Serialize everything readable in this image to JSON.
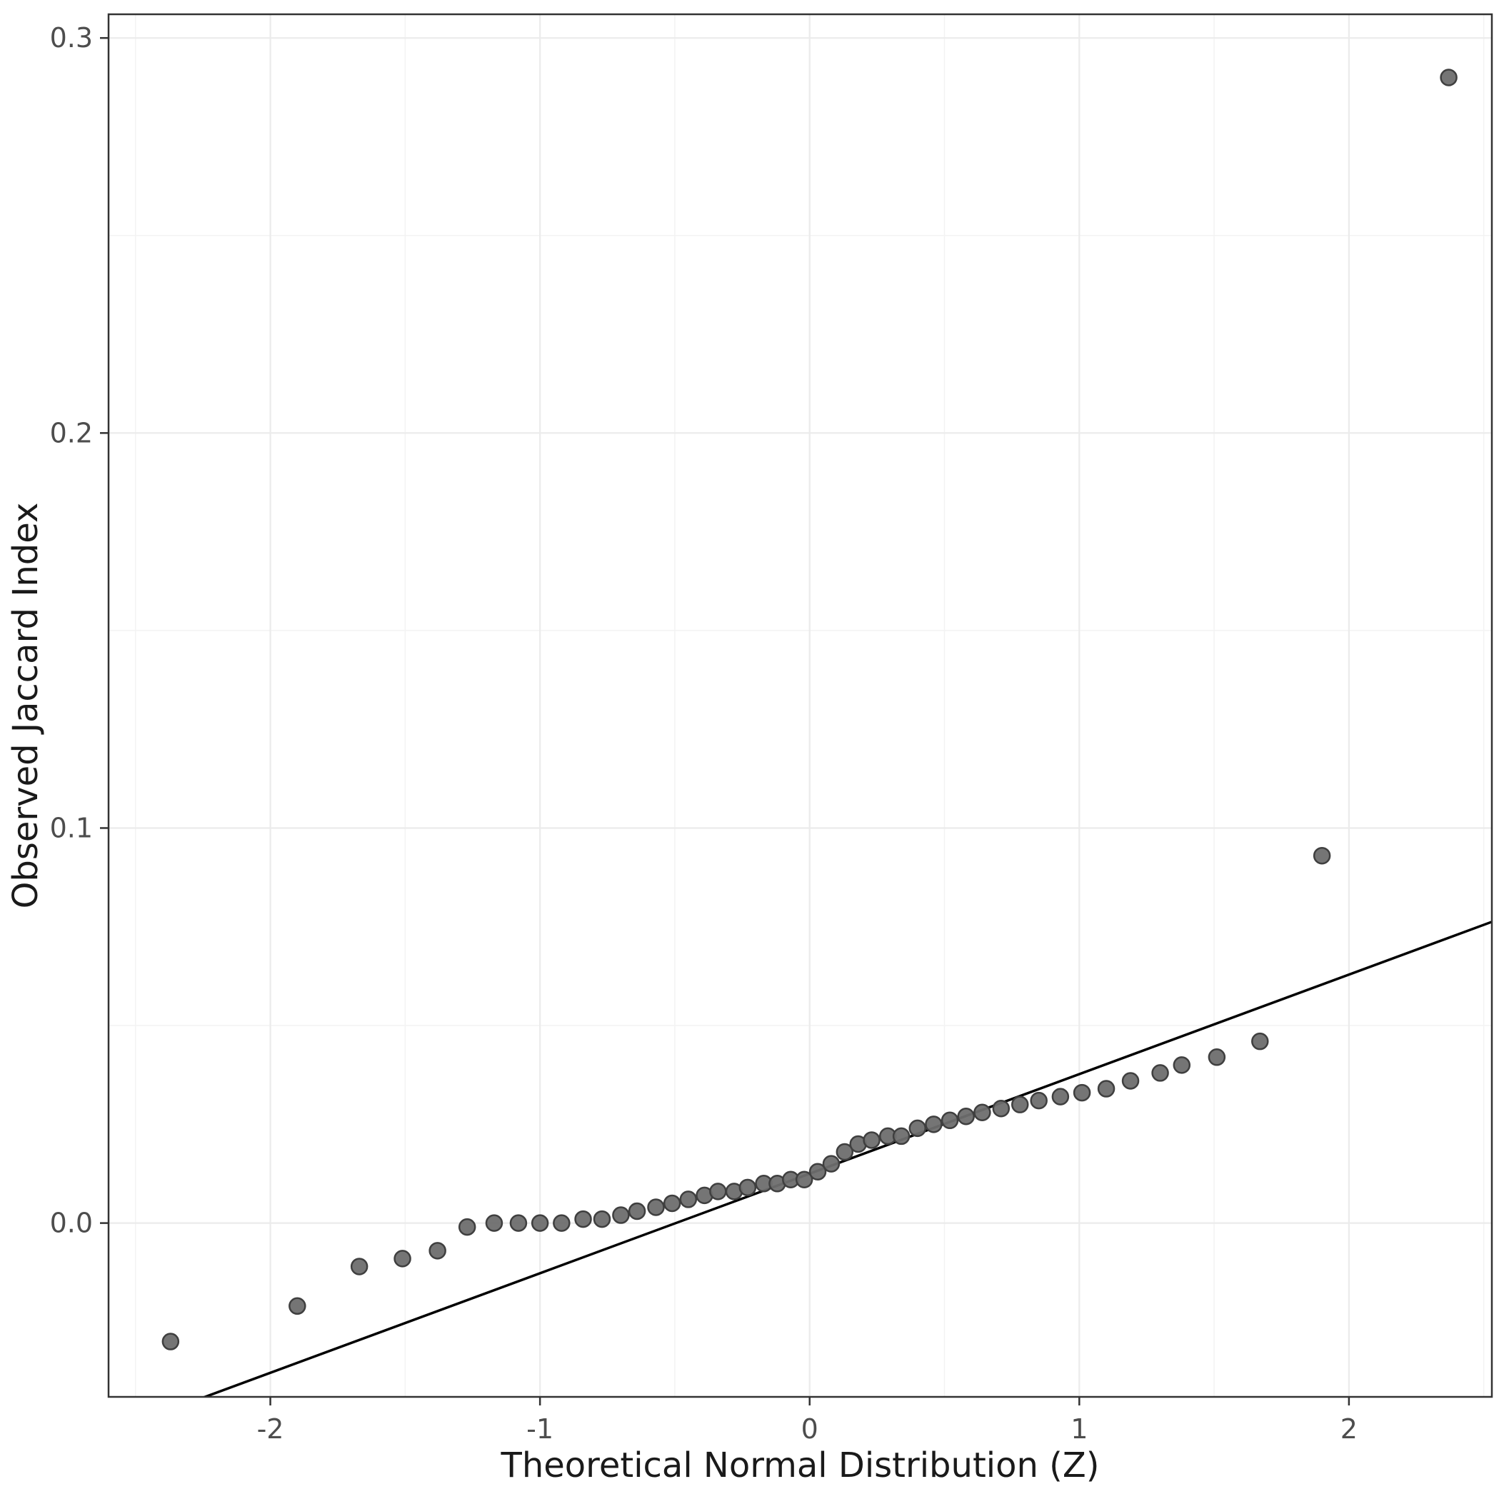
{
  "chart_data": {
    "type": "scatter",
    "title": "",
    "xlabel": "Theoretical Normal Distribution (Z)",
    "ylabel": "Observed Jaccard Index",
    "xlim": [
      -2.6,
      2.53
    ],
    "ylim": [
      -0.044,
      0.306
    ],
    "x_ticks": [
      -2,
      -1,
      0,
      1,
      2
    ],
    "x_tick_labels": [
      "-2",
      "-1",
      "0",
      "1",
      "2"
    ],
    "y_ticks": [
      0.0,
      0.1,
      0.2,
      0.3
    ],
    "y_tick_labels": [
      "0.0",
      "0.1",
      "0.2",
      "0.3"
    ],
    "x_minor_ticks": [
      -2.5,
      -1.5,
      -0.5,
      0.5,
      1.5,
      2.5
    ],
    "y_minor_ticks": [
      0.05,
      0.15,
      0.25
    ],
    "grid": true,
    "legend": "none",
    "series": [
      {
        "name": "observed-quantiles",
        "type": "scatter",
        "points": [
          [
            -2.37,
            -0.03
          ],
          [
            -1.9,
            -0.021
          ],
          [
            -1.67,
            -0.011
          ],
          [
            -1.51,
            -0.009
          ],
          [
            -1.38,
            -0.007
          ],
          [
            -1.27,
            -0.001
          ],
          [
            -1.17,
            0.0
          ],
          [
            -1.08,
            0.0
          ],
          [
            -1.0,
            0.0
          ],
          [
            -0.92,
            0.0
          ],
          [
            -0.84,
            0.001
          ],
          [
            -0.77,
            0.001
          ],
          [
            -0.7,
            0.002
          ],
          [
            -0.64,
            0.003
          ],
          [
            -0.57,
            0.004
          ],
          [
            -0.51,
            0.005
          ],
          [
            -0.45,
            0.006
          ],
          [
            -0.39,
            0.007
          ],
          [
            -0.34,
            0.008
          ],
          [
            -0.28,
            0.008
          ],
          [
            -0.23,
            0.009
          ],
          [
            -0.17,
            0.01
          ],
          [
            -0.12,
            0.01
          ],
          [
            -0.07,
            0.011
          ],
          [
            -0.02,
            0.011
          ],
          [
            0.03,
            0.013
          ],
          [
            0.08,
            0.015
          ],
          [
            0.13,
            0.018
          ],
          [
            0.18,
            0.02
          ],
          [
            0.23,
            0.021
          ],
          [
            0.29,
            0.022
          ],
          [
            0.34,
            0.022
          ],
          [
            0.4,
            0.024
          ],
          [
            0.46,
            0.025
          ],
          [
            0.52,
            0.026
          ],
          [
            0.58,
            0.027
          ],
          [
            0.64,
            0.028
          ],
          [
            0.71,
            0.029
          ],
          [
            0.78,
            0.03
          ],
          [
            0.85,
            0.031
          ],
          [
            0.93,
            0.032
          ],
          [
            1.01,
            0.033
          ],
          [
            1.1,
            0.034
          ],
          [
            1.19,
            0.036
          ],
          [
            1.3,
            0.038
          ],
          [
            1.38,
            0.04
          ],
          [
            1.51,
            0.042
          ],
          [
            1.67,
            0.046
          ],
          [
            1.9,
            0.093
          ],
          [
            2.37,
            0.29
          ]
        ]
      },
      {
        "name": "qq-reference-line",
        "type": "line",
        "slope": 0.0252,
        "intercept": 0.0125
      }
    ],
    "colors": {
      "background": "#ffffff",
      "panel_background": "#ffffff",
      "panel_border": "#333333",
      "grid_major": "#ebebeb",
      "grid_minor": "#f3f3f3",
      "point_fill": "#6e6e6e",
      "point_stroke": "#3f3f3f",
      "reference_line": "#000000",
      "tick_mark": "#333333",
      "tick_label": "#4d4d4d",
      "axis_title": "#1a1a1a"
    }
  }
}
